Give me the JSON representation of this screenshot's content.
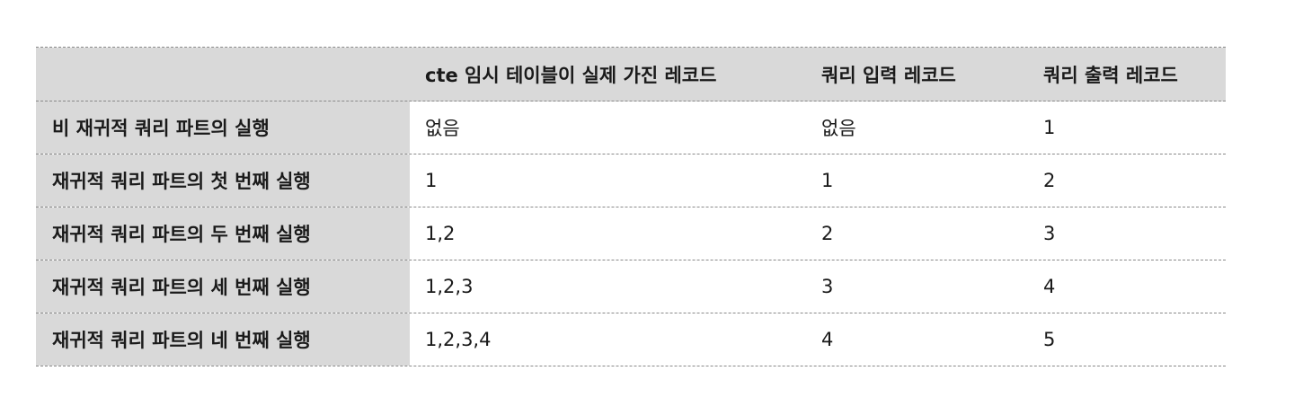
{
  "table": {
    "headers": [
      "",
      "cte 임시 테이블이 실제 가진 레코드",
      "쿼리 입력 레코드",
      "쿼리 출력 레코드"
    ],
    "rows": [
      [
        "비 재귀적 쿼리 파트의 실행",
        "없음",
        "없음",
        "1"
      ],
      [
        "재귀적 쿼리 파트의 첫 번째 실행",
        "1",
        "1",
        "2"
      ],
      [
        "재귀적 쿼리 파트의 두 번째 실행",
        "1,2",
        "2",
        "3"
      ],
      [
        "재귀적 쿼리 파트의 세 번째 실행",
        "1,2,3",
        "3",
        "4"
      ],
      [
        "재귀적 쿼리 파트의 네 번째 실행",
        "1,2,3,4",
        "4",
        "5"
      ]
    ]
  }
}
